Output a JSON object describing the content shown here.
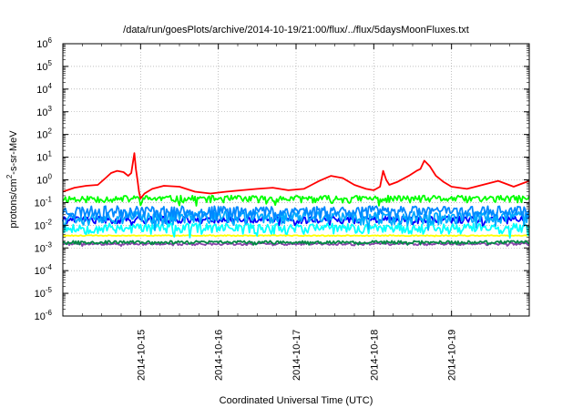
{
  "chart_data": {
    "type": "line",
    "title": "/data/run/goesPlots/archive/2014-10-19/21:00/flux/../flux/5daysMoonFluxes.txt",
    "xlabel": "Coordinated Universal Time (UTC)",
    "ylabel_main": "protons/cm",
    "ylabel_sup": "2",
    "ylabel_rest": "-s-sr-MeV",
    "yscale": "log",
    "ylim_exp": [
      -6,
      6
    ],
    "y_ticks": [
      {
        "base": "10",
        "exp": "-6"
      },
      {
        "base": "10",
        "exp": "-5"
      },
      {
        "base": "10",
        "exp": "-4"
      },
      {
        "base": "10",
        "exp": "-3"
      },
      {
        "base": "10",
        "exp": "-2"
      },
      {
        "base": "10",
        "exp": "-1"
      },
      {
        "base": "10",
        "exp": "0"
      },
      {
        "base": "10",
        "exp": "1"
      },
      {
        "base": "10",
        "exp": "2"
      },
      {
        "base": "10",
        "exp": "3"
      },
      {
        "base": "10",
        "exp": "4"
      },
      {
        "base": "10",
        "exp": "5"
      },
      {
        "base": "10",
        "exp": "6"
      }
    ],
    "xlim_days": [
      0.0,
      6.0
    ],
    "x_ticks": [
      {
        "label": "2014-10-15",
        "day": 1
      },
      {
        "label": "2014-10-16",
        "day": 2
      },
      {
        "label": "2014-10-17",
        "day": 3
      },
      {
        "label": "2014-10-18",
        "day": 4
      },
      {
        "label": "2014-10-19",
        "day": 5
      }
    ],
    "grid": true,
    "series": [
      {
        "color": "#ff0000",
        "t": [
          0.0,
          0.15,
          0.3,
          0.45,
          0.55,
          0.62,
          0.7,
          0.78,
          0.84,
          0.88,
          0.92,
          0.94,
          0.96,
          0.98,
          1.0,
          1.05,
          1.15,
          1.3,
          1.5,
          1.7,
          1.9,
          2.1,
          2.3,
          2.5,
          2.7,
          2.9,
          3.1,
          3.2,
          3.3,
          3.45,
          3.6,
          3.75,
          3.9,
          4.0,
          4.08,
          4.12,
          4.16,
          4.2,
          4.3,
          4.45,
          4.55,
          4.6,
          4.65,
          4.72,
          4.8,
          4.9,
          5.0,
          5.2,
          5.4,
          5.6,
          5.8,
          6.0
        ],
        "y": [
          0.3,
          0.45,
          0.55,
          0.6,
          1.2,
          2.0,
          2.5,
          2.2,
          1.5,
          2.0,
          15,
          3,
          1.0,
          0.3,
          0.15,
          0.25,
          0.4,
          0.55,
          0.5,
          0.3,
          0.25,
          0.3,
          0.35,
          0.4,
          0.45,
          0.35,
          0.4,
          0.6,
          0.9,
          1.5,
          1.2,
          0.6,
          0.4,
          0.35,
          0.5,
          2.5,
          1.0,
          0.6,
          0.8,
          1.5,
          2.5,
          3,
          7,
          4,
          1.5,
          0.8,
          0.5,
          0.4,
          0.6,
          0.9,
          0.5,
          0.9
        ]
      },
      {
        "color": "#00ff00",
        "base": 0.15,
        "amp": 0.35,
        "seed": 11
      },
      {
        "color": "#0088ff",
        "base": 0.045,
        "amp": 0.55,
        "seed": 23
      },
      {
        "color": "#00aaff",
        "base": 0.025,
        "amp": 0.6,
        "seed": 37
      },
      {
        "color": "#0000ff",
        "base": 0.018,
        "amp": 0.35,
        "seed": 41
      },
      {
        "color": "#00ffff",
        "base": 0.008,
        "amp": 0.5,
        "seed": 53
      },
      {
        "color": "#ffff00",
        "base": 0.0035,
        "amp": 0.05,
        "seed": 61
      },
      {
        "color": "#008844",
        "base": 0.0018,
        "amp": 0.15,
        "seed": 67
      },
      {
        "color": "#8844aa",
        "base": 0.0015,
        "amp": 0.12,
        "seed": 71
      }
    ]
  }
}
